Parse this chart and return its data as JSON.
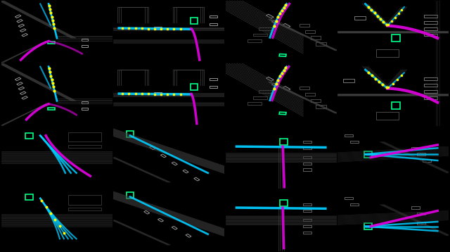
{
  "grid_rows": 4,
  "grid_cols": 4,
  "bg_color": "#000000",
  "road_color": "#3a3a3a",
  "vehicle_color": "#aaaaaa",
  "pred_color": "#00ccff",
  "gt_color": "#dd00dd",
  "keyframe_color": "#ffff00",
  "ego_box_color": "#00ff88",
  "figsize": [
    6.4,
    3.58
  ],
  "dpi": 100
}
